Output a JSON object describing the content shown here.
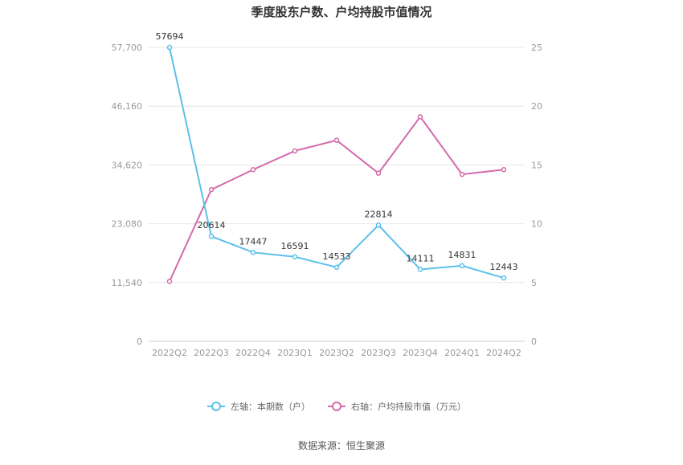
{
  "chart_data": {
    "type": "line",
    "title": "季度股东户数、户均持股市值情况",
    "categories": [
      "2022Q2",
      "2022Q3",
      "2022Q4",
      "2023Q1",
      "2023Q2",
      "2023Q3",
      "2023Q4",
      "2024Q1",
      "2024Q2"
    ],
    "series": [
      {
        "name": "左轴：本期数（户）",
        "axis": "left",
        "color": "#5bc0eb",
        "values": [
          57694,
          20614,
          17447,
          16591,
          14533,
          22814,
          14111,
          14831,
          12443
        ],
        "labels": [
          "57694",
          "20614",
          "17447",
          "16591",
          "14533",
          "22814",
          "14111",
          "14831",
          "12443"
        ]
      },
      {
        "name": "右轴：户均持股市值（万元）",
        "axis": "right",
        "color": "#d46aac",
        "values": [
          5.1,
          12.9,
          14.6,
          16.2,
          17.1,
          14.3,
          19.1,
          14.2,
          14.6
        ]
      }
    ],
    "left_axis": {
      "min": 0,
      "max": 57700,
      "ticks": [
        0,
        11540,
        23080,
        34620,
        46160,
        57700
      ],
      "tick_labels": [
        "0",
        "11,540",
        "23,080",
        "34,620",
        "46,160",
        "57,700"
      ]
    },
    "right_axis": {
      "min": 0,
      "max": 25,
      "ticks": [
        0,
        5,
        10,
        15,
        20,
        25
      ],
      "tick_labels": [
        "0",
        "5",
        "10",
        "15",
        "20",
        "25"
      ]
    },
    "grid": true,
    "legend_position": "bottom"
  },
  "source": "数据来源：恒生聚源"
}
